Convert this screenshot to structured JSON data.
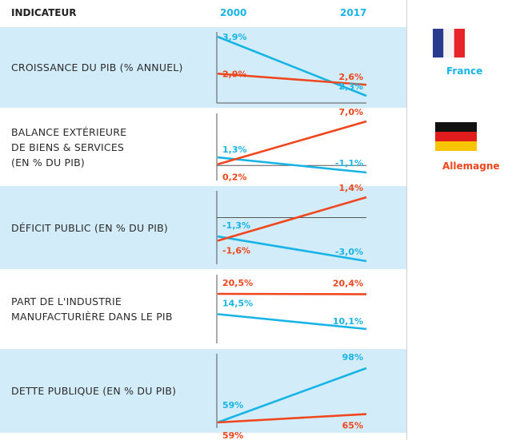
{
  "header": {
    "indicator": "INDICATEUR",
    "year_start": "2000",
    "year_end": "2017"
  },
  "colors": {
    "france": "#19b4e6",
    "germany": "#f0461e",
    "row_bg": "#d2ecf9",
    "axis": "#555555"
  },
  "legend": [
    {
      "name": "France",
      "icon": "france-flag-icon"
    },
    {
      "name": "Allemagne",
      "icon": "germany-flag-icon"
    }
  ],
  "chart_data": {
    "type": "line",
    "x": [
      "2000",
      "2017"
    ],
    "panels": [
      {
        "title": "CROISSANCE DU PIB (% ANNUEL)",
        "series": [
          {
            "name": "France",
            "values": [
              3.9,
              2.3
            ],
            "labels": [
              "3,9%",
              "2,3%"
            ]
          },
          {
            "name": "Allemagne",
            "values": [
              2.9,
              2.6
            ],
            "labels": [
              "2,9%",
              "2,6%"
            ]
          }
        ]
      },
      {
        "title": "BALANCE EXTÉRIEURE\nDE BIENS & SERVICES\n(EN % DU PIB)",
        "series": [
          {
            "name": "France",
            "values": [
              1.3,
              -1.1
            ],
            "labels": [
              "1,3%",
              "-1,1%"
            ]
          },
          {
            "name": "Allemagne",
            "values": [
              0.2,
              7.0
            ],
            "labels": [
              "0,2%",
              "7,0%"
            ]
          }
        ]
      },
      {
        "title": "DÉFICIT PUBLIC (EN % DU PIB)",
        "series": [
          {
            "name": "France",
            "values": [
              -1.3,
              -3.0
            ],
            "labels": [
              "-1,3%",
              "-3,0%"
            ]
          },
          {
            "name": "Allemagne",
            "values": [
              -1.6,
              1.4
            ],
            "labels": [
              "-1,6%",
              "1,4%"
            ]
          }
        ]
      },
      {
        "title": "PART DE L'INDUSTRIE\nMANUFACTURIÈRE DANS LE PIB",
        "series": [
          {
            "name": "France",
            "values": [
              14.5,
              10.1
            ],
            "labels": [
              "14,5%",
              "10,1%"
            ]
          },
          {
            "name": "Allemagne",
            "values": [
              20.5,
              20.4
            ],
            "labels": [
              "20,5%",
              "20,4%"
            ]
          }
        ]
      },
      {
        "title": "DETTE PUBLIQUE (EN % DU PIB)",
        "series": [
          {
            "name": "France",
            "values": [
              59,
              98
            ],
            "labels": [
              "59%",
              "98%"
            ]
          },
          {
            "name": "Allemagne",
            "values": [
              59,
              65
            ],
            "labels": [
              "59%",
              "65%"
            ]
          }
        ]
      }
    ]
  }
}
